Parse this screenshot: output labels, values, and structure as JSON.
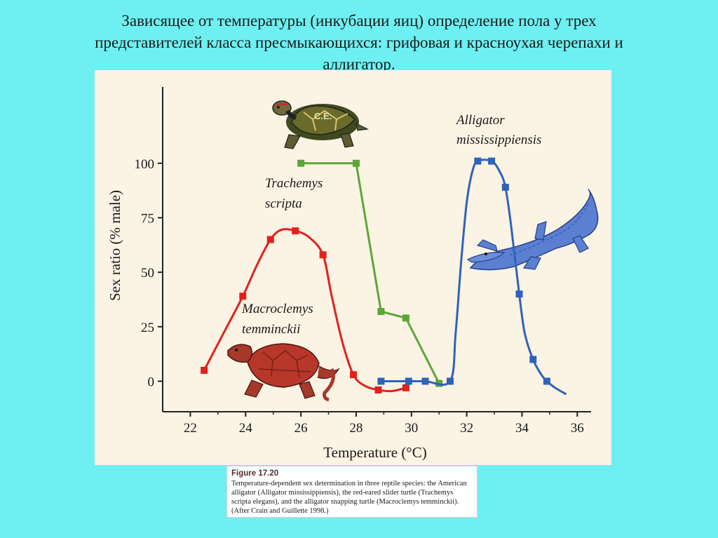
{
  "slide": {
    "title_line1": "Зависящее от температуры (инкубации яиц) определение пола у трех",
    "title_line2": "представителей класса  пресмыкающихся: грифовая и красноухая черепахи и",
    "title_line3": "аллигатор."
  },
  "caption": {
    "label": "Figure 17.20",
    "text": "Temperature-dependent sex determination in three reptile species: the American alligator (Alligator mississippiensis), the red-eared slider turtle (Trachemys scripta elegans), and the alligator snapping turtle (Macroclemys temminckii). (After Crain and Guillette 1998.)"
  },
  "chart_data": {
    "type": "line",
    "xlabel": "Temperature (°C)",
    "ylabel": "Sex ratio (% male)",
    "xlim": [
      21,
      36.5
    ],
    "ylim": [
      -14,
      135
    ],
    "x_ticks": [
      22,
      24,
      26,
      28,
      30,
      32,
      34,
      36
    ],
    "y_ticks": [
      0,
      25,
      50,
      75,
      100
    ],
    "grid": false,
    "series": [
      {
        "name": "Macroclemys temminckii",
        "label_lines": [
          "Macroclemys",
          "temminckii"
        ],
        "color": "#e0221e",
        "marker": "square",
        "x": [
          22.5,
          23.9,
          24.9,
          25.8,
          26.8,
          27.9,
          28.8,
          29.8
        ],
        "y": [
          5,
          39,
          65,
          69,
          58,
          3,
          -4,
          -3
        ],
        "curve_x": [
          22.5,
          23.2,
          23.9,
          24.4,
          24.9,
          25.3,
          25.8,
          26.3,
          26.8,
          27.1,
          27.5,
          27.9,
          28.3,
          28.8,
          29.3,
          29.8
        ],
        "curve_y": [
          5,
          22,
          39,
          53,
          65,
          69.5,
          69,
          66,
          58,
          40,
          18,
          3,
          -2,
          -4,
          -4.5,
          -3
        ]
      },
      {
        "name": "Trachemys scripta",
        "label_lines": [
          "Trachemys",
          "scripta"
        ],
        "color": "#5ca638",
        "marker": "square",
        "x": [
          26,
          28,
          28.9,
          29.8,
          31
        ],
        "y": [
          100,
          100,
          32,
          29,
          -1
        ],
        "curve_x": [
          26,
          28,
          28.9,
          29.8,
          31
        ],
        "curve_y": [
          100,
          100,
          32,
          29,
          -1
        ]
      },
      {
        "name": "Alligator mississippiensis",
        "label_lines": [
          "Alligator",
          "mississippiensis"
        ],
        "color": "#2e63b8",
        "marker": "square",
        "x": [
          28.9,
          29.9,
          30.5,
          31.4,
          32.4,
          32.9,
          33.4,
          33.9,
          34.4,
          34.9
        ],
        "y": [
          0,
          0,
          0,
          0,
          101,
          101,
          89,
          40,
          10,
          0
        ],
        "curve_x": [
          28.9,
          29.9,
          30.5,
          31.4,
          31.6,
          31.8,
          32.0,
          32.2,
          32.4,
          32.9,
          33.2,
          33.4,
          33.6,
          33.9,
          34.1,
          34.4,
          34.7,
          34.9,
          35.2,
          35.6
        ],
        "curve_y": [
          0,
          0,
          0,
          0,
          22,
          55,
          82,
          96,
          101,
          101,
          96,
          89,
          72,
          40,
          22,
          10,
          3,
          0,
          -3,
          -6
        ]
      }
    ]
  },
  "icons": {
    "trachemys": "red-eared-slider-turtle-drawing",
    "macroclemys": "alligator-snapping-turtle-drawing",
    "alligator": "alligator-drawing",
    "turtle_shell_text": "C.E."
  }
}
